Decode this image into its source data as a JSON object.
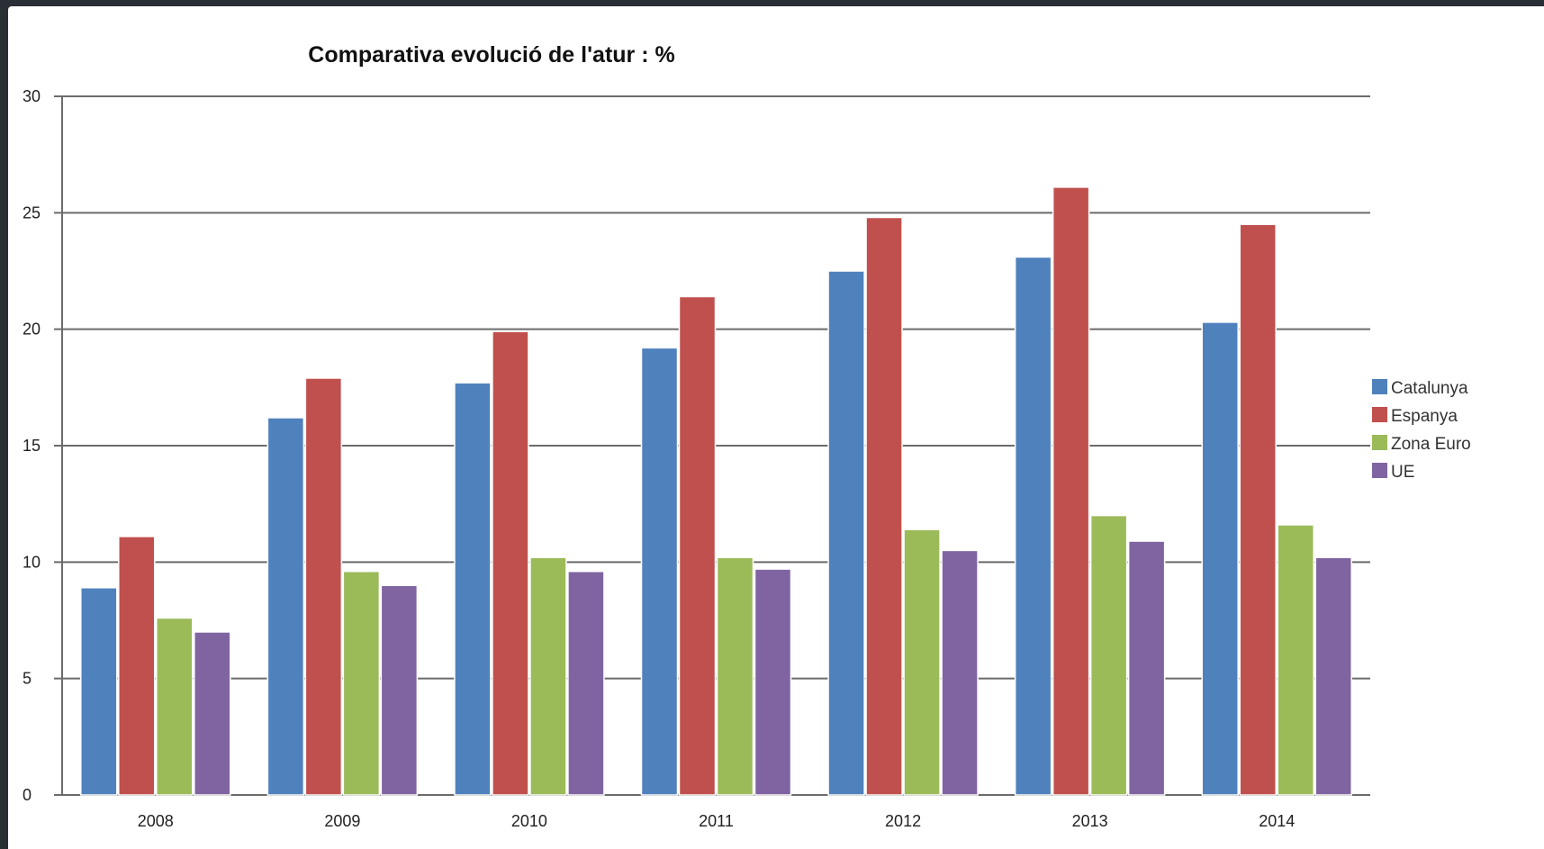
{
  "chart_data": {
    "type": "bar",
    "title": "Comparativa evolució de l'atur : %",
    "categories": [
      "2008",
      "2009",
      "2010",
      "2011",
      "2012",
      "2013",
      "2014"
    ],
    "series": [
      {
        "name": "Catalunya",
        "color": "#4f81bd",
        "values": [
          8.9,
          16.2,
          17.7,
          19.2,
          22.5,
          23.1,
          20.3
        ]
      },
      {
        "name": "Espanya",
        "color": "#c0504d",
        "values": [
          11.1,
          17.9,
          19.9,
          21.4,
          24.8,
          26.1,
          24.5
        ]
      },
      {
        "name": "Zona Euro",
        "color": "#9bbb59",
        "values": [
          7.6,
          9.6,
          10.2,
          10.2,
          11.4,
          12.0,
          11.6
        ]
      },
      {
        "name": "UE",
        "color": "#8064a2",
        "values": [
          7.0,
          9.0,
          9.6,
          9.7,
          10.5,
          10.9,
          10.2
        ]
      }
    ],
    "ylim": [
      0,
      30
    ],
    "yticks": [
      "0",
      "5",
      "10",
      "15",
      "20",
      "25",
      "30"
    ],
    "grid": true,
    "legend_position": "right"
  }
}
